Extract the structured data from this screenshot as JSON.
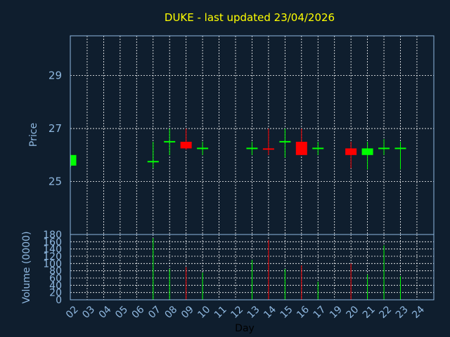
{
  "chart_data": {
    "type": "candlestick",
    "title": "DUKE - last updated 23/04/2026",
    "price_panel": {
      "ylabel": "Price",
      "ylim": [
        23.0,
        30.5
      ],
      "yticks": [
        "25",
        "27",
        "29"
      ],
      "ytick_values": [
        25,
        27,
        29
      ]
    },
    "volume_panel": {
      "ylabel": "Volume (0000)",
      "ylim": [
        0,
        180
      ],
      "yticks": [
        "0",
        "20",
        "40",
        "60",
        "80",
        "100",
        "120",
        "140",
        "160",
        "180"
      ],
      "ytick_values": [
        0,
        20,
        40,
        60,
        80,
        100,
        120,
        140,
        160,
        180
      ]
    },
    "xlabel": "Day",
    "x_tick_labels": [
      "02",
      "03",
      "04",
      "05",
      "06",
      "07",
      "08",
      "09",
      "10",
      "11",
      "12",
      "13",
      "14",
      "15",
      "16",
      "17",
      "19",
      "20",
      "21",
      "22",
      "23",
      "24"
    ],
    "candles": [
      {
        "day": "02",
        "open": 25.6,
        "high": 26.0,
        "low": 25.55,
        "close": 26.0,
        "volume": 0
      },
      {
        "day": "07",
        "open": 25.75,
        "high": 26.5,
        "low": 25.5,
        "close": 25.75,
        "volume": 170
      },
      {
        "day": "08",
        "open": 26.5,
        "high": 27.0,
        "low": 26.0,
        "close": 26.5,
        "volume": 85
      },
      {
        "day": "09",
        "open": 26.5,
        "high": 27.0,
        "low": 26.2,
        "close": 26.25,
        "volume": 90
      },
      {
        "day": "10",
        "open": 26.25,
        "high": 26.5,
        "low": 26.0,
        "close": 26.25,
        "volume": 75
      },
      {
        "day": "13",
        "open": 26.25,
        "high": 26.5,
        "low": 26.0,
        "close": 26.25,
        "volume": 110
      },
      {
        "day": "14",
        "open": 26.25,
        "high": 27.0,
        "low": 26.0,
        "close": 26.2,
        "volume": 165
      },
      {
        "day": "15",
        "open": 26.5,
        "high": 27.0,
        "low": 25.9,
        "close": 26.5,
        "volume": 85
      },
      {
        "day": "16",
        "open": 26.5,
        "high": 27.0,
        "low": 26.0,
        "close": 26.0,
        "volume": 95
      },
      {
        "day": "17",
        "open": 26.25,
        "high": 26.5,
        "low": 26.0,
        "close": 26.25,
        "volume": 50
      },
      {
        "day": "20",
        "open": 26.25,
        "high": 26.5,
        "low": 25.5,
        "close": 26.0,
        "volume": 100
      },
      {
        "day": "21",
        "open": 26.0,
        "high": 26.5,
        "low": 25.45,
        "close": 26.25,
        "volume": 70
      },
      {
        "day": "22",
        "open": 26.25,
        "high": 26.6,
        "low": 26.0,
        "close": 26.25,
        "volume": 150
      },
      {
        "day": "23",
        "open": 26.25,
        "high": 26.5,
        "low": 25.45,
        "close": 26.25,
        "volume": 65
      }
    ],
    "grid": true,
    "colors": {
      "background": "#0f1e2e",
      "title": "#ffff00",
      "axis_text": "#8fb8e0",
      "frame": "#8fb8e0",
      "grid": "#ffffff",
      "up": "#00ff00",
      "down": "#ff0000",
      "xlabel": "#000000"
    }
  }
}
